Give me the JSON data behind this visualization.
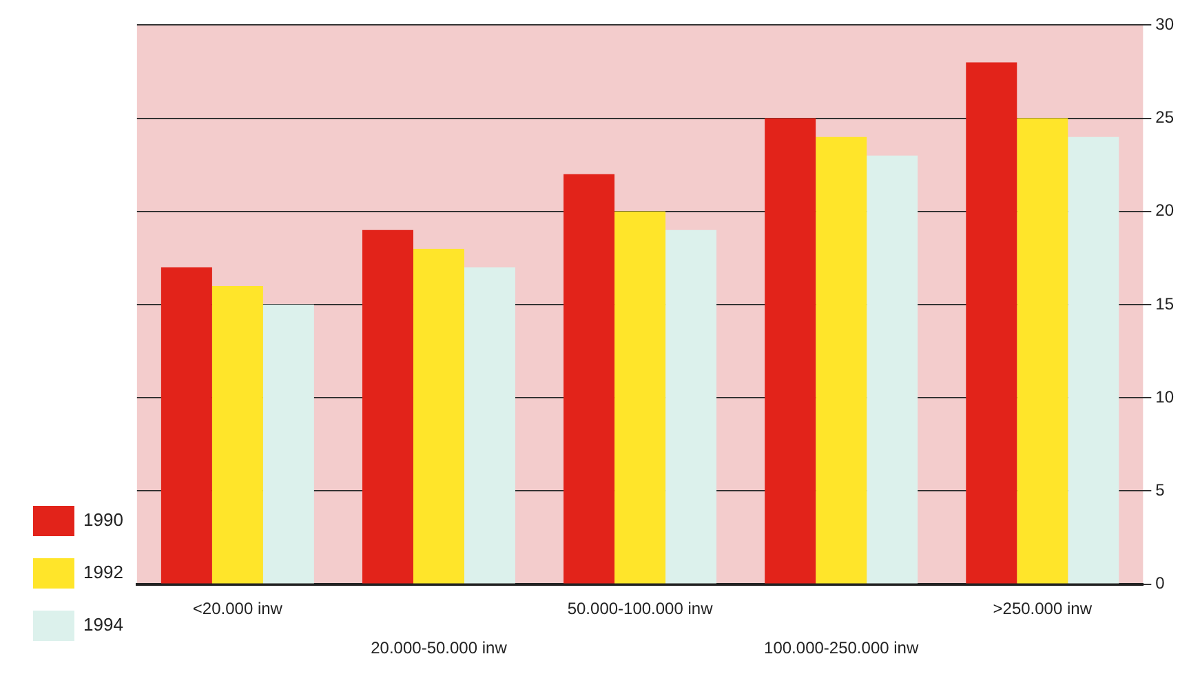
{
  "chart_data": {
    "type": "bar",
    "categories": [
      "<20.000 inw",
      "20.000-50.000 inw",
      "50.000-100.000 inw",
      "100.000-250.000 inw",
      ">250.000 inw"
    ],
    "series": [
      {
        "name": "1990",
        "color": "#e2231a",
        "values": [
          17,
          19,
          22,
          25,
          28
        ]
      },
      {
        "name": "1992",
        "color": "#ffe52a",
        "values": [
          16,
          18,
          20,
          24,
          25
        ]
      },
      {
        "name": "1994",
        "color": "#dcf1ec",
        "values": [
          15,
          17,
          19,
          23,
          24
        ]
      }
    ],
    "ylim": [
      0,
      30
    ],
    "yticks": [
      0,
      5,
      10,
      15,
      20,
      25,
      30
    ],
    "grid": "y",
    "legend": "left"
  }
}
